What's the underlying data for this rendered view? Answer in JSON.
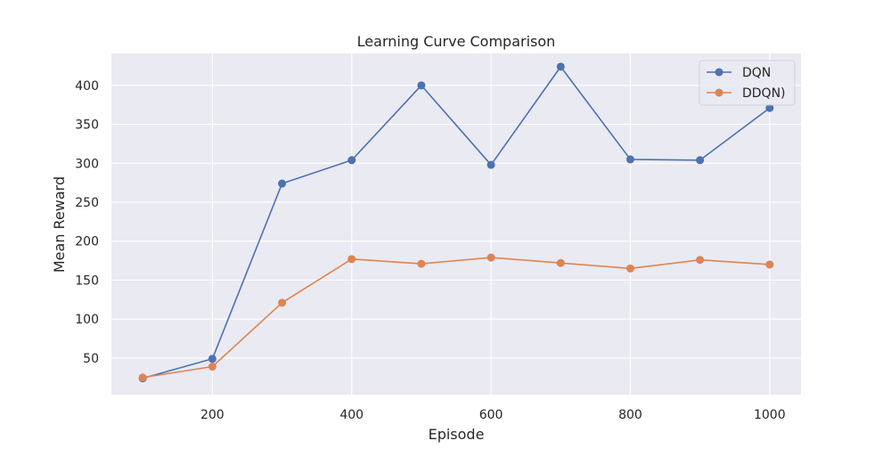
{
  "chart_data": {
    "type": "line",
    "title": "Learning Curve Comparison",
    "xlabel": "Episode",
    "ylabel": "Mean Reward",
    "x": [
      100,
      200,
      300,
      400,
      500,
      600,
      700,
      800,
      900,
      1000
    ],
    "xlim": [
      55,
      1045
    ],
    "ylim": [
      3,
      441
    ],
    "xticks": [
      200,
      400,
      600,
      800,
      1000
    ],
    "yticks": [
      50,
      100,
      150,
      200,
      250,
      300,
      350,
      400
    ],
    "grid": true,
    "legend_position": "top-right",
    "series": [
      {
        "name": "DQN",
        "color": "#4c72b0",
        "values": [
          24,
          49,
          274,
          304,
          400,
          298,
          424,
          305,
          304,
          371
        ]
      },
      {
        "name": "DDQN)",
        "color": "#dd8452",
        "values": [
          25,
          39,
          121,
          177,
          171,
          179,
          172,
          165,
          176,
          170
        ]
      }
    ]
  },
  "colors": {
    "plot_background": "#eaeaf2",
    "grid": "#ffffff"
  }
}
